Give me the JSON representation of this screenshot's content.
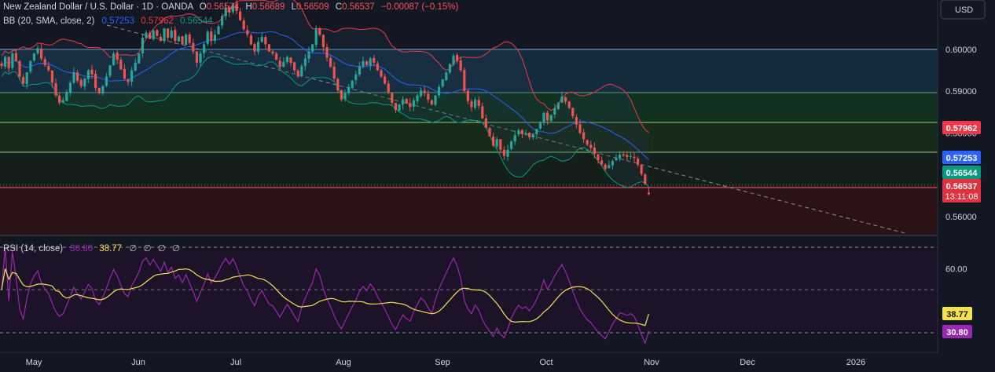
{
  "header": {
    "symbol_title": "New Zealand Dollar / U.S. Dollar · 1D · OANDA",
    "o_label": "O",
    "o_value": "0.56574",
    "h_label": "H",
    "h_value": "0.56689",
    "l_label": "L",
    "l_value": "0.56509",
    "c_label": "C",
    "c_value": "0.56537",
    "change": "−0.00087 (−0.15%)",
    "bb_title": "BB (20, SMA, close, 2)",
    "bb_basis": "0.57253",
    "bb_upper": "0.57962",
    "bb_lower": "0.56544"
  },
  "currency_button": "USD",
  "rsi_header": {
    "title": "RSI (14, close)",
    "rsi_value": "30.80",
    "ma_value": "38.77",
    "empty_values": [
      "∅",
      "∅",
      "∅",
      "∅"
    ]
  },
  "colors": {
    "background": "#131722",
    "up": "#26a69a",
    "down": "#ef5350",
    "bb_upper": "#f23645",
    "bb_basis": "#2962ff",
    "bb_lower": "#089981",
    "rsi": "#9c27b0",
    "rsi_ma": "#f5e050",
    "zone_blue": "#1e4560",
    "zone_green": "#163b31",
    "zone_red": "#3a1519"
  },
  "price_badges": {
    "bb_upper": "0.57962",
    "bb_basis": "0.57253",
    "bb_lower": "0.56544",
    "last_price": "0.56537",
    "countdown": "13:11:08"
  },
  "rsi_badges": {
    "ma": "38.77",
    "rsi": "30.80"
  },
  "chart_data": [
    {
      "type": "candlestick",
      "title": "New Zealand Dollar / U.S. Dollar · 1D · OANDA",
      "x_ticks": [
        "May",
        "Jun",
        "Jul",
        "Aug",
        "Sep",
        "Oct",
        "Nov",
        "Dec",
        "2026"
      ],
      "y_ticks": [
        "0.60000",
        "0.59000",
        "0.58000",
        "0.57000",
        "0.56000"
      ],
      "ylim": [
        0.5555,
        0.6118
      ],
      "ohlc_last": {
        "open": 0.56574,
        "high": 0.56689,
        "low": 0.56509,
        "close": 0.56537,
        "change": "−0.00087 (−0.15%)"
      },
      "horizontal_levels": [
        0.5991,
        0.5886,
        0.5813,
        0.5741,
        0.5649
      ],
      "trendline": {
        "start": 0.6073,
        "end": 0.5565
      },
      "closes": [
        0.596,
        0.5982,
        0.5955,
        0.599,
        0.5972,
        0.5935,
        0.5918,
        0.5945,
        0.5972,
        0.599,
        0.6003,
        0.5978,
        0.5962,
        0.595,
        0.592,
        0.589,
        0.5872,
        0.5878,
        0.5898,
        0.592,
        0.5945,
        0.5925,
        0.5912,
        0.593,
        0.595,
        0.594,
        0.5908,
        0.5895,
        0.5912,
        0.5935,
        0.5962,
        0.599,
        0.5975,
        0.5952,
        0.593,
        0.5922,
        0.595,
        0.5968,
        0.599,
        0.6028,
        0.604,
        0.6025,
        0.6045,
        0.6032,
        0.602,
        0.605,
        0.6028,
        0.6045,
        0.602,
        0.603,
        0.6012,
        0.6035,
        0.6015,
        0.5995,
        0.5968,
        0.599,
        0.6012,
        0.6042,
        0.602,
        0.6035,
        0.6055,
        0.608,
        0.61,
        0.6088,
        0.6108,
        0.6092,
        0.607,
        0.6048,
        0.6035,
        0.6012,
        0.5995,
        0.6018,
        0.603,
        0.6012,
        0.5995,
        0.599,
        0.5975,
        0.5958,
        0.597,
        0.5982,
        0.5968,
        0.595,
        0.5935,
        0.596,
        0.5978,
        0.5995,
        0.6012,
        0.6048,
        0.6035,
        0.6005,
        0.598,
        0.5958,
        0.593,
        0.5902,
        0.588,
        0.5895,
        0.591,
        0.5925,
        0.594,
        0.596,
        0.5972,
        0.5962,
        0.5978,
        0.5968,
        0.595,
        0.5935,
        0.5918,
        0.5898,
        0.5872,
        0.5855,
        0.5868,
        0.588,
        0.587,
        0.5862,
        0.5878,
        0.589,
        0.5902,
        0.5895,
        0.588,
        0.5868,
        0.589,
        0.591,
        0.5928,
        0.5945,
        0.5965,
        0.5985,
        0.5972,
        0.595,
        0.59,
        0.5876,
        0.5862,
        0.588,
        0.5865,
        0.5835,
        0.5812,
        0.5792,
        0.577,
        0.5785,
        0.576,
        0.5745,
        0.576,
        0.578,
        0.5795,
        0.5806,
        0.5797,
        0.58,
        0.579,
        0.5798,
        0.581,
        0.5825,
        0.5848,
        0.583,
        0.5843,
        0.5859,
        0.5873,
        0.5887,
        0.5875,
        0.586,
        0.584,
        0.582,
        0.58,
        0.5785,
        0.5772,
        0.5764,
        0.575,
        0.5735,
        0.5725,
        0.5714,
        0.5723,
        0.5733,
        0.574,
        0.5748,
        0.5746,
        0.5743,
        0.5745,
        0.574,
        0.5724,
        0.5702,
        0.5678,
        0.5654
      ]
    },
    {
      "type": "line",
      "title": "RSI (14, close)",
      "series": [
        {
          "name": "RSI",
          "last": 30.8
        },
        {
          "name": "RSI MA",
          "last": 38.77
        }
      ],
      "y_ticks": [
        "60.00"
      ],
      "levels": [
        70,
        50,
        30
      ]
    }
  ]
}
